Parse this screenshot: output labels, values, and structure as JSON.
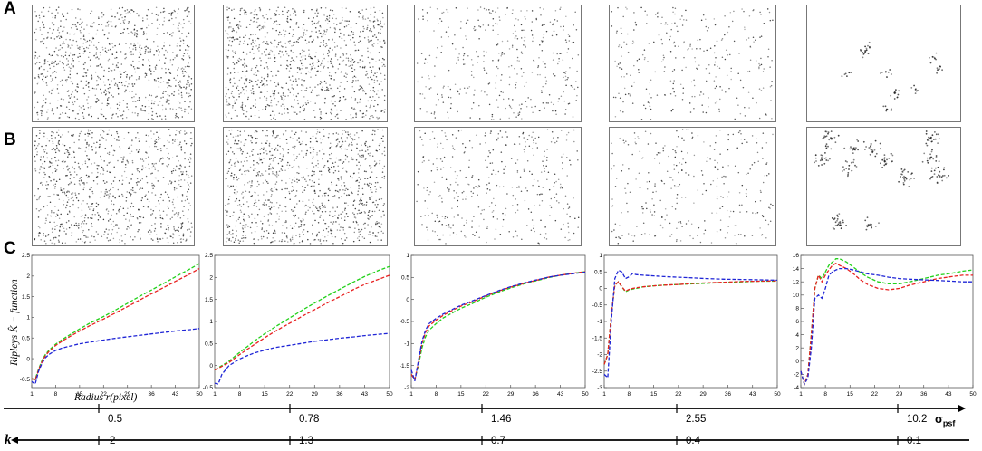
{
  "row_labels": {
    "a": "A",
    "b": "B",
    "c": "C"
  },
  "colors": {
    "green": "#22d11a",
    "red": "#e82020",
    "blue": "#1f25d6"
  },
  "y_axis_label": "Ripleys K̂ − function",
  "x_axis_label": "Radius r(pixel)",
  "sigma_axis": {
    "label": "σ",
    "subscript": "psf",
    "values": [
      "0.5",
      "0.78",
      "1.46",
      "2.55",
      "10.2"
    ]
  },
  "k_axis": {
    "label": "k",
    "values": [
      "2",
      "1.3",
      "0.7",
      "0.4",
      "0.1"
    ]
  },
  "chart_data": [
    {
      "type": "line",
      "xlim": [
        1,
        50
      ],
      "xticks": [
        "1",
        "8",
        "15",
        "22",
        "29",
        "36",
        "43",
        "50"
      ],
      "ylim": [
        -0.7,
        2.5
      ],
      "yticks": [
        "-0.5",
        "0",
        "0.5",
        "1",
        "1.5",
        "2",
        "2.5"
      ],
      "x": [
        1,
        2,
        3,
        4,
        5,
        6,
        8,
        10,
        12,
        15,
        18,
        22,
        26,
        29,
        33,
        36,
        40,
        43,
        47,
        50
      ],
      "series": [
        {
          "color": "green",
          "values": [
            -0.48,
            -0.5,
            -0.25,
            -0.05,
            0.1,
            0.2,
            0.35,
            0.47,
            0.57,
            0.72,
            0.86,
            1.02,
            1.2,
            1.34,
            1.53,
            1.66,
            1.84,
            1.98,
            2.16,
            2.3
          ]
        },
        {
          "color": "red",
          "values": [
            -0.48,
            -0.52,
            -0.27,
            -0.08,
            0.07,
            0.17,
            0.32,
            0.43,
            0.53,
            0.67,
            0.8,
            0.96,
            1.13,
            1.26,
            1.44,
            1.57,
            1.74,
            1.87,
            2.04,
            2.18
          ]
        },
        {
          "color": "blue",
          "values": [
            -0.55,
            -0.62,
            -0.3,
            -0.12,
            0.02,
            0.1,
            0.2,
            0.26,
            0.3,
            0.36,
            0.4,
            0.45,
            0.5,
            0.53,
            0.57,
            0.6,
            0.64,
            0.67,
            0.7,
            0.73
          ]
        }
      ]
    },
    {
      "type": "line",
      "xlim": [
        1,
        50
      ],
      "xticks": [
        "1",
        "8",
        "15",
        "22",
        "29",
        "36",
        "43",
        "50"
      ],
      "ylim": [
        -0.5,
        2.5
      ],
      "yticks": [
        "-0.5",
        "0",
        "0.5",
        "1",
        "1.5",
        "2",
        "2.5"
      ],
      "x": [
        1,
        2,
        3,
        5,
        8,
        10,
        12,
        15,
        18,
        22,
        26,
        29,
        33,
        36,
        40,
        43,
        47,
        50
      ],
      "series": [
        {
          "color": "green",
          "values": [
            -0.1,
            -0.05,
            0.0,
            0.1,
            0.3,
            0.42,
            0.55,
            0.72,
            0.88,
            1.08,
            1.28,
            1.42,
            1.6,
            1.73,
            1.9,
            2.02,
            2.16,
            2.25
          ]
        },
        {
          "color": "red",
          "values": [
            -0.1,
            -0.06,
            -0.02,
            0.07,
            0.25,
            0.36,
            0.47,
            0.63,
            0.78,
            0.96,
            1.14,
            1.27,
            1.44,
            1.56,
            1.73,
            1.84,
            1.96,
            2.05
          ]
        },
        {
          "color": "blue",
          "values": [
            -0.4,
            -0.42,
            -0.2,
            0.0,
            0.15,
            0.22,
            0.28,
            0.35,
            0.41,
            0.46,
            0.51,
            0.55,
            0.59,
            0.62,
            0.65,
            0.68,
            0.71,
            0.73
          ]
        }
      ]
    },
    {
      "type": "line",
      "xlim": [
        1,
        50
      ],
      "xticks": [
        "1",
        "8",
        "15",
        "22",
        "29",
        "36",
        "43",
        "50"
      ],
      "ylim": [
        -2,
        1
      ],
      "yticks": [
        "-2",
        "-1.5",
        "-1",
        "-0.5",
        "0",
        "0.5",
        "1"
      ],
      "x": [
        1,
        2,
        3,
        4,
        5,
        6,
        8,
        10,
        12,
        15,
        18,
        22,
        26,
        29,
        33,
        36,
        40,
        43,
        47,
        50
      ],
      "series": [
        {
          "color": "green",
          "values": [
            -1.7,
            -1.82,
            -1.5,
            -1.1,
            -0.85,
            -0.7,
            -0.55,
            -0.42,
            -0.33,
            -0.2,
            -0.1,
            0.05,
            0.18,
            0.26,
            0.36,
            0.42,
            0.5,
            0.55,
            0.6,
            0.63
          ]
        },
        {
          "color": "red",
          "values": [
            -1.7,
            -1.82,
            -1.45,
            -1.0,
            -0.75,
            -0.6,
            -0.47,
            -0.36,
            -0.27,
            -0.15,
            -0.06,
            0.08,
            0.2,
            0.28,
            0.37,
            0.43,
            0.51,
            0.55,
            0.6,
            0.63
          ]
        },
        {
          "color": "blue",
          "values": [
            -1.6,
            -1.85,
            -1.4,
            -0.95,
            -0.7,
            -0.55,
            -0.43,
            -0.33,
            -0.25,
            -0.13,
            -0.04,
            0.09,
            0.21,
            0.29,
            0.38,
            0.44,
            0.51,
            0.55,
            0.59,
            0.62
          ]
        }
      ]
    },
    {
      "type": "line",
      "xlim": [
        1,
        50
      ],
      "xticks": [
        "1",
        "8",
        "15",
        "22",
        "29",
        "36",
        "43",
        "50"
      ],
      "ylim": [
        -3,
        1
      ],
      "yticks": [
        "-3",
        "-2.5",
        "-2",
        "-1.5",
        "-1",
        "-0.5",
        "0",
        "0.5",
        "1"
      ],
      "x": [
        1,
        2,
        3,
        4,
        5,
        6,
        7,
        8,
        9,
        10,
        12,
        15,
        18,
        22,
        26,
        30,
        35,
        40,
        45,
        50
      ],
      "series": [
        {
          "color": "green",
          "values": [
            -2.3,
            -2.0,
            -0.8,
            0.1,
            0.2,
            0.05,
            -0.1,
            -0.05,
            -0.02,
            0.0,
            0.05,
            0.08,
            0.1,
            0.12,
            0.14,
            0.16,
            0.18,
            0.2,
            0.22,
            0.22
          ]
        },
        {
          "color": "red",
          "values": [
            -2.3,
            -2.0,
            -0.8,
            0.1,
            0.2,
            0.05,
            -0.08,
            -0.03,
            0.0,
            0.02,
            0.05,
            0.08,
            0.1,
            0.12,
            0.15,
            0.17,
            0.19,
            0.21,
            0.22,
            0.23
          ]
        },
        {
          "color": "blue",
          "values": [
            -2.6,
            -2.7,
            -1.0,
            0.3,
            0.55,
            0.5,
            0.3,
            0.35,
            0.45,
            0.42,
            0.4,
            0.38,
            0.36,
            0.34,
            0.32,
            0.3,
            0.28,
            0.27,
            0.26,
            0.25
          ]
        }
      ]
    },
    {
      "type": "line",
      "xlim": [
        1,
        50
      ],
      "xticks": [
        "1",
        "8",
        "15",
        "22",
        "29",
        "36",
        "43",
        "50"
      ],
      "ylim": [
        -4,
        16
      ],
      "yticks": [
        "-4",
        "-2",
        "0",
        "2",
        "4",
        "6",
        "8",
        "10",
        "12",
        "14",
        "16"
      ],
      "x": [
        1,
        2,
        3,
        4,
        5,
        6,
        7,
        8,
        9,
        10,
        11,
        12,
        14,
        16,
        18,
        20,
        23,
        26,
        29,
        32,
        36,
        40,
        44,
        47,
        50
      ],
      "series": [
        {
          "color": "green",
          "values": [
            -1.5,
            -3.5,
            -2.0,
            4.0,
            11.0,
            13.0,
            12.5,
            13.5,
            14.5,
            15.0,
            15.5,
            15.5,
            15.0,
            14.2,
            13.4,
            12.7,
            12.0,
            11.7,
            11.7,
            12.0,
            12.5,
            13.0,
            13.3,
            13.6,
            13.8
          ]
        },
        {
          "color": "red",
          "values": [
            -1.5,
            -3.5,
            -2.0,
            4.0,
            11.0,
            13.0,
            12.0,
            13.0,
            13.8,
            14.5,
            14.8,
            14.5,
            14.0,
            13.2,
            12.3,
            11.6,
            11.0,
            10.8,
            11.0,
            11.5,
            12.0,
            12.5,
            12.8,
            13.0,
            13.0
          ]
        },
        {
          "color": "blue",
          "values": [
            -1.5,
            -3.5,
            -2.5,
            2.0,
            9.5,
            10.0,
            9.5,
            11.0,
            13.0,
            13.5,
            13.8,
            14.0,
            14.0,
            13.8,
            13.5,
            13.2,
            13.0,
            12.7,
            12.5,
            12.4,
            12.3,
            12.2,
            12.1,
            12.0,
            12.0
          ]
        }
      ]
    }
  ]
}
